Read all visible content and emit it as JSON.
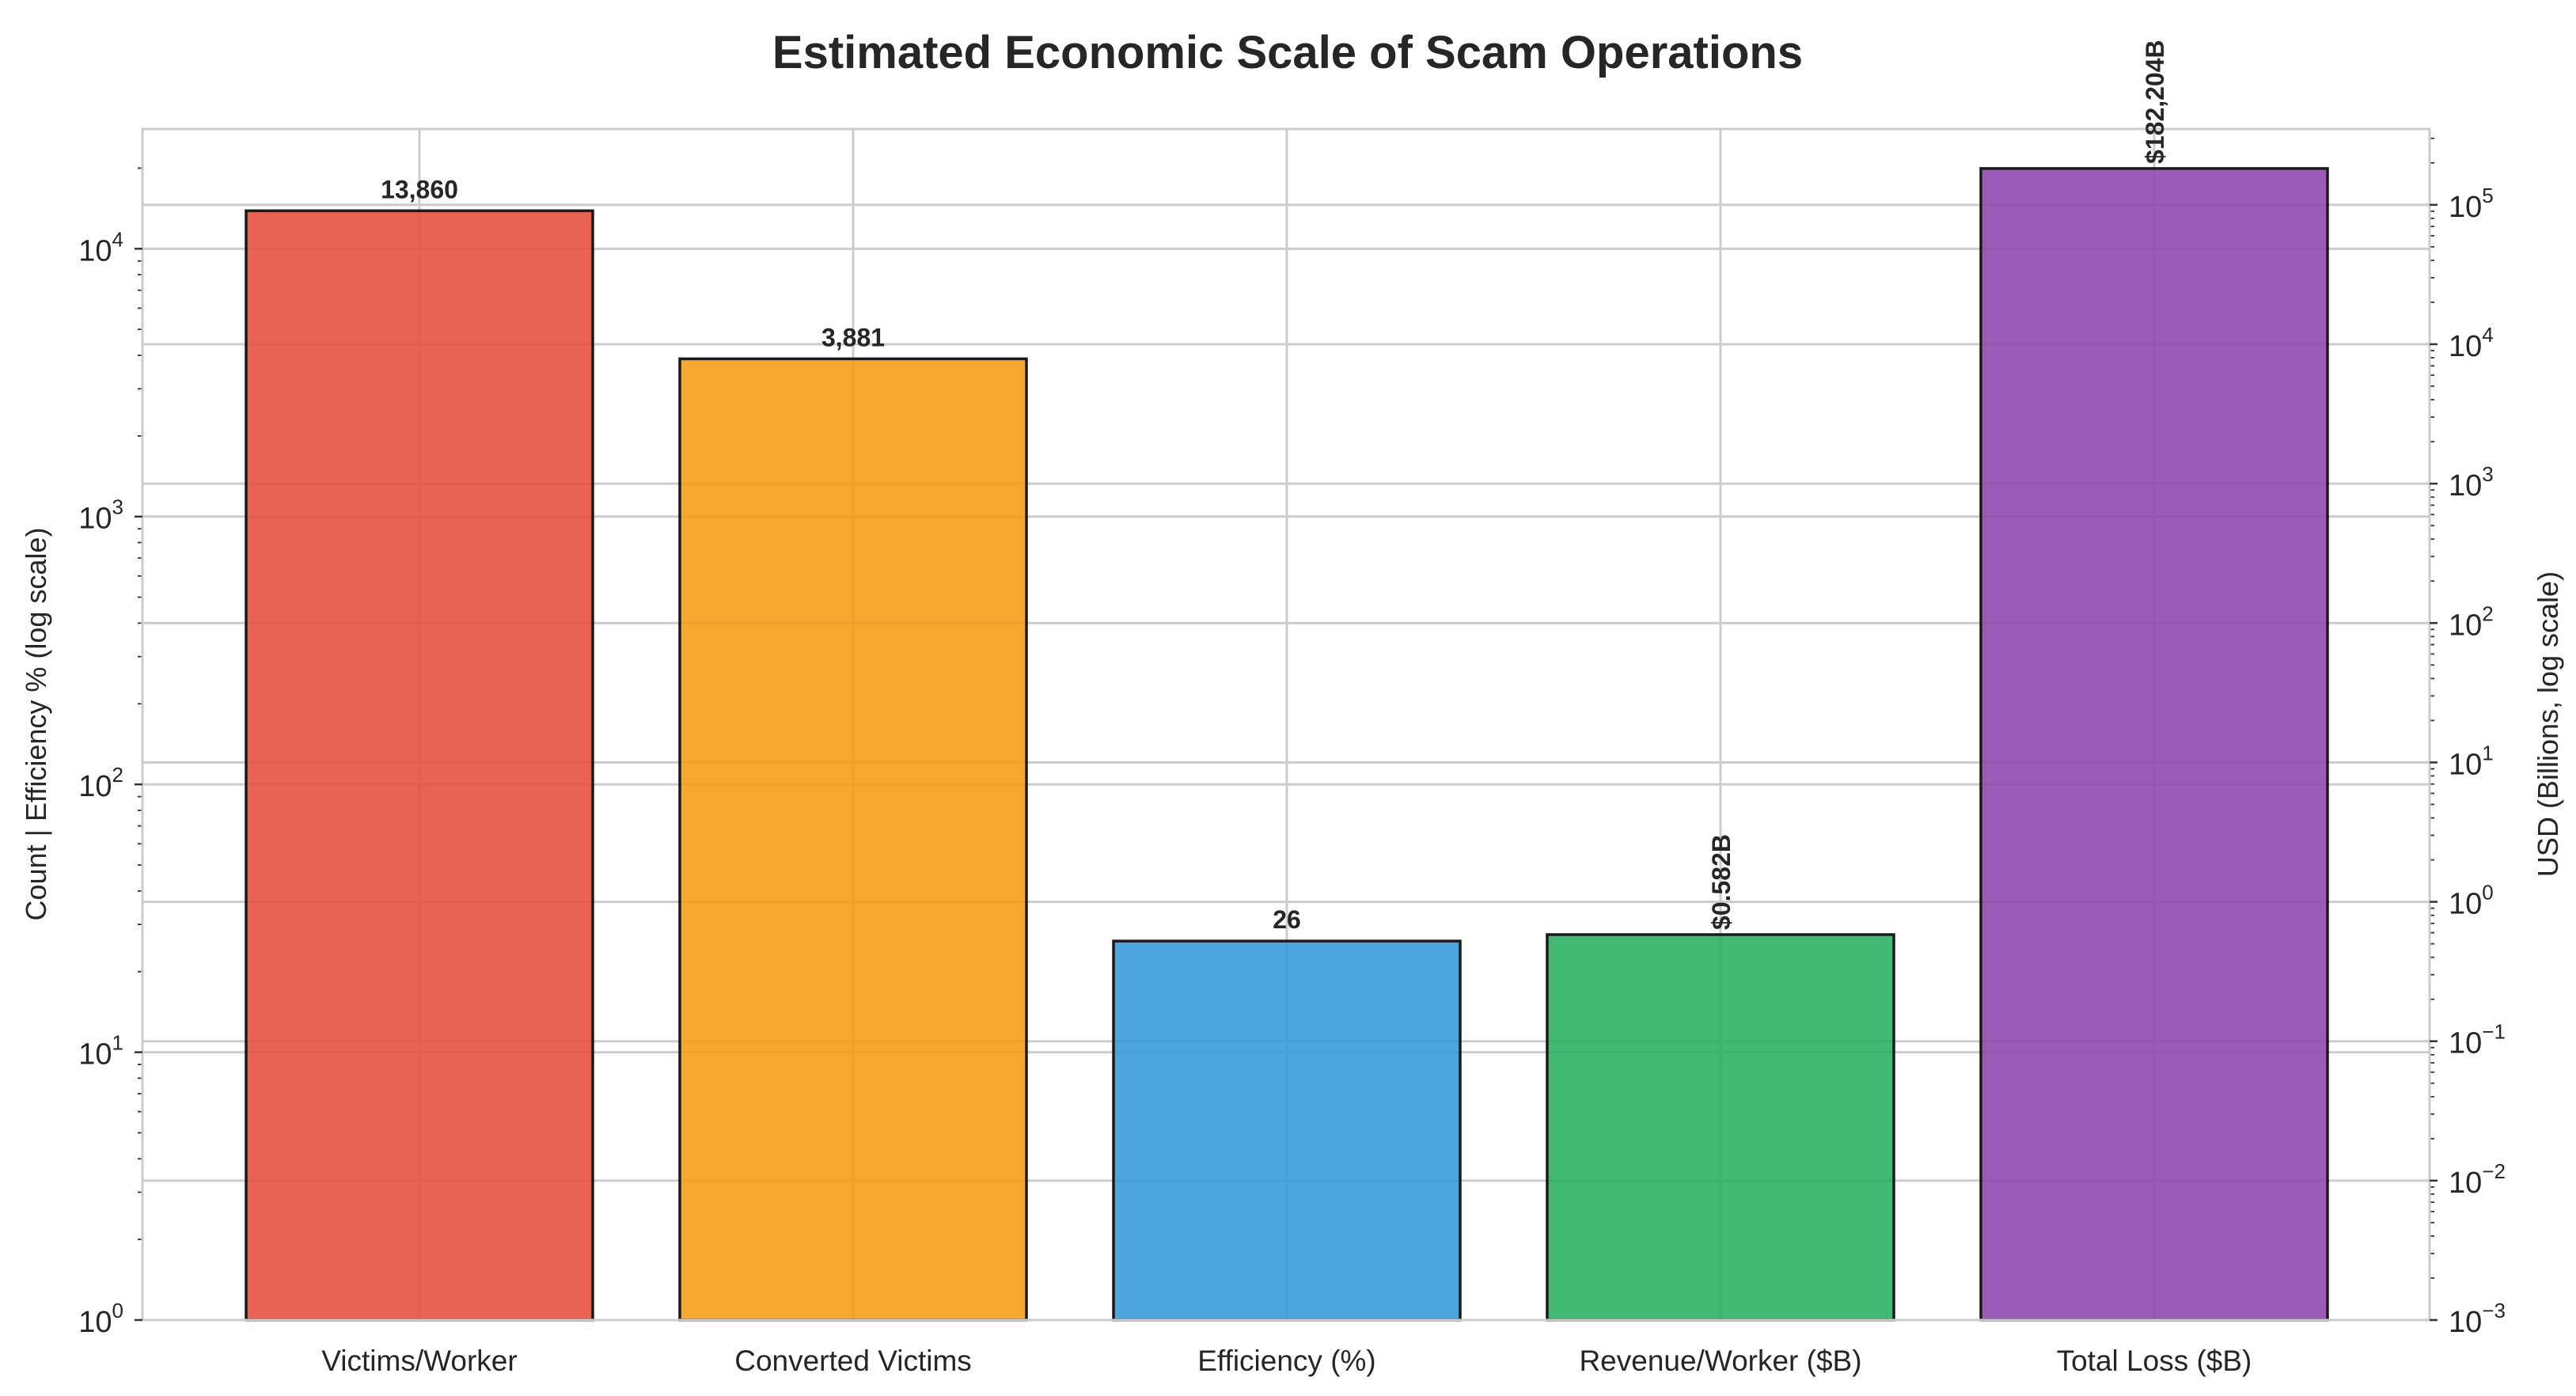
{
  "chart_data": {
    "type": "bar",
    "title": "Estimated Economic Scale of Scam Operations",
    "categories": [
      "Victims/Worker",
      "Converted Victims",
      "Efficiency (%)",
      "Revenue/Worker ($B)",
      "Total Loss ($B)"
    ],
    "values": [
      13860,
      3881,
      26,
      0.582,
      182204
    ],
    "axis": [
      "left",
      "left",
      "left",
      "right",
      "right"
    ],
    "labels": [
      "13,860",
      "3,881",
      "26",
      "$0.582B",
      "$182,204B"
    ],
    "label_rotated": [
      false,
      false,
      false,
      true,
      true
    ],
    "colors": [
      "#e74c3c",
      "#f39c12",
      "#3498db",
      "#27ae60",
      "#8e44ad"
    ],
    "ylabel_left": "Count   |   Efficiency % (log scale)",
    "ylabel_right": "USD  (Billions, log scale)",
    "ylim_left": [
      1,
      28000
    ],
    "ylim_right": [
      0.001,
      350000
    ],
    "yscale": "log",
    "left_ticks": [
      {
        "base": "10",
        "exp": "0"
      },
      {
        "base": "10",
        "exp": "1"
      },
      {
        "base": "10",
        "exp": "2"
      },
      {
        "base": "10",
        "exp": "3"
      },
      {
        "base": "10",
        "exp": "4"
      }
    ],
    "right_ticks": [
      {
        "base": "10",
        "exp": "−3"
      },
      {
        "base": "10",
        "exp": "−2"
      },
      {
        "base": "10",
        "exp": "−1"
      },
      {
        "base": "10",
        "exp": "0"
      },
      {
        "base": "10",
        "exp": "1"
      },
      {
        "base": "10",
        "exp": "2"
      },
      {
        "base": "10",
        "exp": "3"
      },
      {
        "base": "10",
        "exp": "4"
      },
      {
        "base": "10",
        "exp": "5"
      }
    ],
    "grid": true,
    "legend": "none"
  }
}
